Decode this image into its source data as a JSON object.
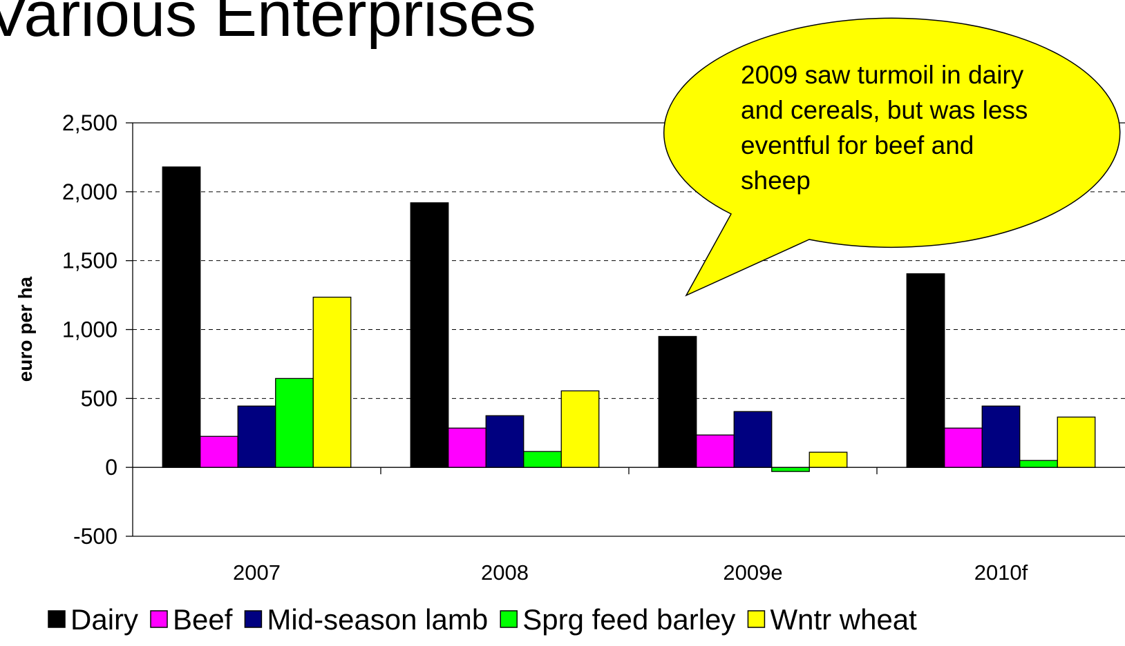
{
  "title": "Various Enterprises",
  "callout": {
    "lines": [
      "2009 saw turmoil in dairy",
      "and cereals, but was less",
      "eventful for beef and",
      "sheep"
    ],
    "fill": "#ffff00"
  },
  "chart_data": {
    "type": "bar",
    "title": "",
    "xlabel": "",
    "ylabel": "euro per ha",
    "ylim": [
      -500,
      2500
    ],
    "yticks": [
      -500,
      0,
      500,
      1000,
      1500,
      2000,
      2500
    ],
    "ytick_labels": [
      "-500",
      "0",
      "500",
      "1,000",
      "1,500",
      "2,000",
      "2,500"
    ],
    "grid": "dashed horizontal",
    "legend": "bottom",
    "categories": [
      "2007",
      "2008",
      "2009e",
      "2010f"
    ],
    "series": [
      {
        "name": "Dairy",
        "color": "#000000",
        "values": [
          2180,
          1920,
          950,
          1405
        ]
      },
      {
        "name": "Beef",
        "color": "#ff00ff",
        "values": [
          225,
          285,
          235,
          285
        ]
      },
      {
        "name": "Mid-season lamb",
        "color": "#000080",
        "values": [
          445,
          375,
          405,
          445
        ]
      },
      {
        "name": "Sprg feed barley",
        "color": "#00ff00",
        "values": [
          645,
          115,
          -30,
          50
        ]
      },
      {
        "name": "Wntr wheat",
        "color": "#ffff00",
        "values": [
          1235,
          555,
          110,
          365
        ]
      }
    ]
  }
}
